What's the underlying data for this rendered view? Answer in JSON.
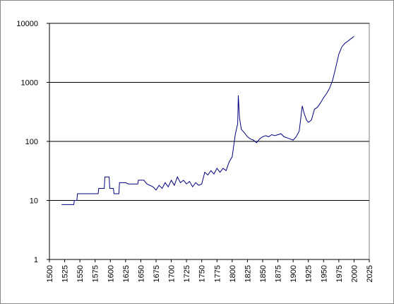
{
  "chart_data": {
    "type": "line",
    "x": [
      1520,
      1540,
      1541,
      1545,
      1546,
      1580,
      1581,
      1590,
      1591,
      1598,
      1599,
      1605,
      1606,
      1614,
      1615,
      1625,
      1630,
      1645,
      1646,
      1655,
      1660,
      1670,
      1675,
      1680,
      1685,
      1690,
      1695,
      1700,
      1705,
      1710,
      1715,
      1720,
      1725,
      1730,
      1735,
      1740,
      1745,
      1750,
      1755,
      1760,
      1765,
      1770,
      1775,
      1780,
      1785,
      1790,
      1795,
      1800,
      1805,
      1809,
      1810,
      1812,
      1815,
      1820,
      1825,
      1830,
      1835,
      1840,
      1845,
      1850,
      1855,
      1860,
      1865,
      1870,
      1875,
      1880,
      1885,
      1890,
      1895,
      1900,
      1905,
      1910,
      1915,
      1918,
      1922,
      1925,
      1930,
      1935,
      1940,
      1945,
      1950,
      1955,
      1960,
      1965,
      1970,
      1975,
      1980,
      1985,
      1990,
      1995,
      2000
    ],
    "values": [
      8.5,
      8.5,
      10,
      10,
      13,
      13,
      16,
      16,
      25,
      25,
      16,
      16,
      13,
      13,
      20,
      20,
      19,
      19,
      22,
      22,
      19,
      17,
      15,
      18,
      16,
      20,
      17,
      22,
      18,
      25,
      20,
      22,
      19,
      21,
      17,
      20,
      18,
      19,
      30,
      27,
      32,
      28,
      35,
      30,
      35,
      32,
      45,
      55,
      130,
      200,
      600,
      250,
      160,
      140,
      120,
      110,
      105,
      95,
      110,
      120,
      125,
      120,
      130,
      125,
      130,
      135,
      120,
      115,
      110,
      105,
      120,
      150,
      400,
      300,
      230,
      210,
      230,
      350,
      380,
      450,
      550,
      650,
      800,
      1100,
      1800,
      3000,
      4000,
      4600,
      5000,
      5500,
      6000
    ],
    "color": "#000080",
    "xlim": [
      1500,
      2025
    ],
    "xticks": [
      1500,
      1525,
      1550,
      1575,
      1600,
      1625,
      1650,
      1675,
      1700,
      1725,
      1750,
      1775,
      1800,
      1825,
      1850,
      1875,
      1900,
      1925,
      1950,
      1975,
      2000,
      2025
    ],
    "ylim": [
      1,
      10000
    ],
    "yticks": [
      1,
      10,
      100,
      1000,
      10000
    ],
    "log_y": true,
    "grid": true
  }
}
